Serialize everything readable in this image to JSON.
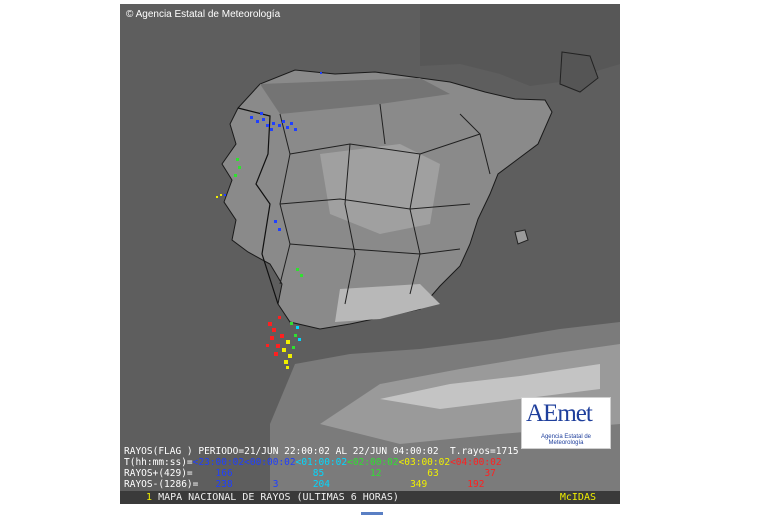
{
  "copyright": "© Agencia Estatal de Meteorología",
  "logo": {
    "word": "AEmet",
    "subtitle": "Agencia Estatal de Meteorología"
  },
  "legend": {
    "line1": "RAYOS(FLAG ) PERIODO=21/JUN 22:00:02 AL 22/JUN 04:00:02  T.rayos=1715",
    "line2_label": "T(hh:mm:ss)=",
    "intervals": [
      "<23:00:02",
      "<00:00:02",
      "<01:00:02",
      "<02:00:02",
      "<03:00:02",
      "<04:00:02"
    ],
    "line3_label": "RAYOS+(429)=",
    "positive": [
      "166",
      "",
      "85",
      "12",
      "63",
      "37"
    ],
    "line4_label": "RAYOS-(1286)=",
    "negative": [
      "238",
      "3",
      "204",
      "",
      "349",
      "192"
    ]
  },
  "bottom": {
    "number": "1",
    "title": "MAPA NACIONAL DE RAYOS (ULTIMAS 6 HORAS)",
    "software": "McIDAS"
  },
  "colors": {
    "interval1": "#1f3fff",
    "interval2": "#1f3fff",
    "interval3": "#00d8ff",
    "interval4": "#30e030",
    "interval5": "#f0f000",
    "interval6": "#ff2020"
  }
}
